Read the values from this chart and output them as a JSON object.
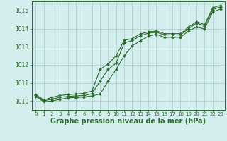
{
  "hours": [
    0,
    1,
    2,
    3,
    4,
    5,
    6,
    7,
    8,
    9,
    10,
    11,
    12,
    13,
    14,
    15,
    16,
    17,
    18,
    19,
    20,
    21,
    22,
    23
  ],
  "line_main": [
    1010.3,
    1010.0,
    1010.1,
    1010.2,
    1010.25,
    1010.28,
    1010.3,
    1010.4,
    1011.1,
    1011.75,
    1012.1,
    1013.2,
    1013.35,
    1013.6,
    1013.75,
    1013.8,
    1013.65,
    1013.65,
    1013.65,
    1014.0,
    1014.3,
    1014.15,
    1015.05,
    1015.2
  ],
  "line_high": [
    1010.35,
    1010.05,
    1010.2,
    1010.3,
    1010.35,
    1010.38,
    1010.42,
    1010.55,
    1011.75,
    1012.05,
    1012.5,
    1013.35,
    1013.45,
    1013.7,
    1013.82,
    1013.87,
    1013.72,
    1013.72,
    1013.72,
    1014.08,
    1014.38,
    1014.22,
    1015.15,
    1015.28
  ],
  "line_low": [
    1010.25,
    1009.95,
    1010.0,
    1010.08,
    1010.18,
    1010.18,
    1010.22,
    1010.28,
    1010.38,
    1011.1,
    1011.75,
    1012.5,
    1013.05,
    1013.32,
    1013.58,
    1013.68,
    1013.52,
    1013.52,
    1013.52,
    1013.88,
    1014.08,
    1013.98,
    1014.92,
    1015.08
  ],
  "line_color": "#2d6a2d",
  "bg_color": "#d4eeee",
  "grid_color": "#aacccc",
  "title": "Graphe pression niveau de la mer (hPa)",
  "ylim_min": 1009.5,
  "ylim_max": 1015.5,
  "yticks": [
    1010,
    1011,
    1012,
    1013,
    1014,
    1015
  ],
  "tick_fontsize": 5.5,
  "xtick_fontsize": 5.0,
  "title_fontsize": 7.0,
  "linewidth": 0.8,
  "markersize": 2.0
}
